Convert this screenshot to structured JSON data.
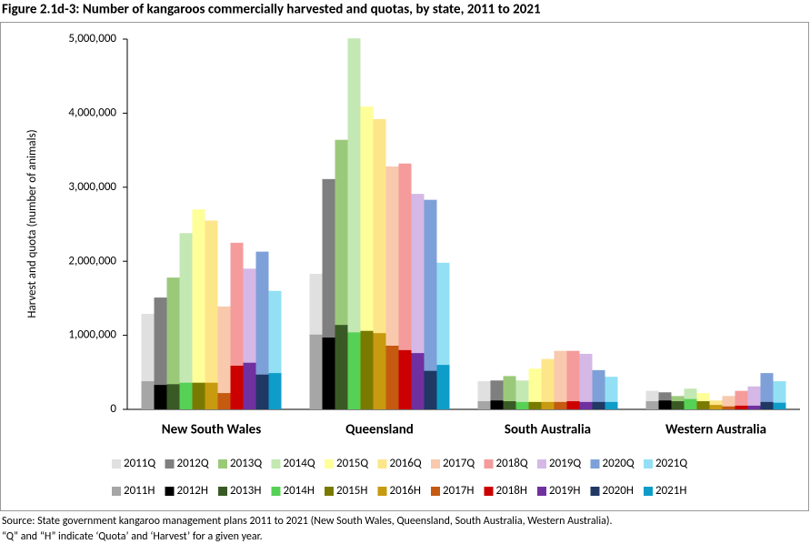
{
  "chart_data": {
    "type": "bar",
    "title": "Figure 2.1d-3: Number of kangaroos commercially harvested and quotas, by state, 2011 to 2021",
    "y_label": "Harvest and quota (number of animals)",
    "categories": [
      "New South Wales",
      "Queensland",
      "South Australia",
      "Western Australia"
    ],
    "ylim": [
      0,
      5000000
    ],
    "yticks": [
      0,
      {
        "value": 1000000,
        "label": "1,000,000"
      },
      {
        "value": 2000000,
        "label": "2,000,000"
      },
      {
        "value": 3000000,
        "label": "3,000,000"
      },
      {
        "value": 4000000,
        "label": "4,000,000"
      },
      {
        "value": 5000000,
        "label": "5,000,000"
      }
    ],
    "series": [
      {
        "name": "2011Q",
        "color": "#e0e0e0",
        "values": [
          1290000,
          1830000,
          380000,
          250000
        ]
      },
      {
        "name": "2012Q",
        "color": "#7f7f7f",
        "values": [
          1510000,
          3110000,
          390000,
          230000
        ]
      },
      {
        "name": "2013Q",
        "color": "#9bc97a",
        "values": [
          1780000,
          3640000,
          450000,
          180000
        ]
      },
      {
        "name": "2014Q",
        "color": "#c4e8b4",
        "values": [
          2380000,
          5010000,
          390000,
          280000
        ]
      },
      {
        "name": "2015Q",
        "color": "#ffff99",
        "values": [
          2700000,
          4090000,
          550000,
          220000
        ]
      },
      {
        "name": "2016Q",
        "color": "#fde68a",
        "values": [
          2550000,
          3920000,
          680000,
          120000
        ]
      },
      {
        "name": "2017Q",
        "color": "#f8c9ad",
        "values": [
          1390000,
          3280000,
          790000,
          180000
        ]
      },
      {
        "name": "2018Q",
        "color": "#f59b9b",
        "values": [
          2250000,
          3320000,
          790000,
          250000
        ]
      },
      {
        "name": "2019Q",
        "color": "#d5b8e6",
        "values": [
          1900000,
          2910000,
          750000,
          310000
        ]
      },
      {
        "name": "2020Q",
        "color": "#7ea0d8",
        "values": [
          2130000,
          2830000,
          530000,
          490000
        ]
      },
      {
        "name": "2021Q",
        "color": "#93e0f5",
        "values": [
          1600000,
          1980000,
          440000,
          380000
        ]
      },
      {
        "name": "2011H",
        "color": "#a6a6a6",
        "values": [
          380000,
          1010000,
          110000,
          110000
        ]
      },
      {
        "name": "2012H",
        "color": "#000000",
        "values": [
          330000,
          970000,
          120000,
          120000
        ]
      },
      {
        "name": "2013H",
        "color": "#3a5a25",
        "values": [
          340000,
          1140000,
          110000,
          110000
        ]
      },
      {
        "name": "2014H",
        "color": "#56d155",
        "values": [
          360000,
          1040000,
          100000,
          140000
        ]
      },
      {
        "name": "2015H",
        "color": "#7a7a00",
        "values": [
          360000,
          1060000,
          100000,
          110000
        ]
      },
      {
        "name": "2016H",
        "color": "#c79a10",
        "values": [
          360000,
          1030000,
          100000,
          60000
        ]
      },
      {
        "name": "2017H",
        "color": "#c55a11",
        "values": [
          220000,
          860000,
          100000,
          40000
        ]
      },
      {
        "name": "2018H",
        "color": "#cc0000",
        "values": [
          590000,
          800000,
          110000,
          50000
        ]
      },
      {
        "name": "2019H",
        "color": "#7030a0",
        "values": [
          630000,
          760000,
          100000,
          50000
        ]
      },
      {
        "name": "2020H",
        "color": "#1f3864",
        "values": [
          470000,
          520000,
          100000,
          100000
        ]
      },
      {
        "name": "2021H",
        "color": "#0e9cc8",
        "values": [
          490000,
          600000,
          100000,
          90000
        ]
      }
    ],
    "source": [
      "Source: State government kangaroo management plans 2011 to 2021 (New South Wales, Queensland, South Australia, Western Australia).",
      "“Q” and “H” indicate ‘Quota’ and ‘Harvest’ for a given year."
    ]
  }
}
